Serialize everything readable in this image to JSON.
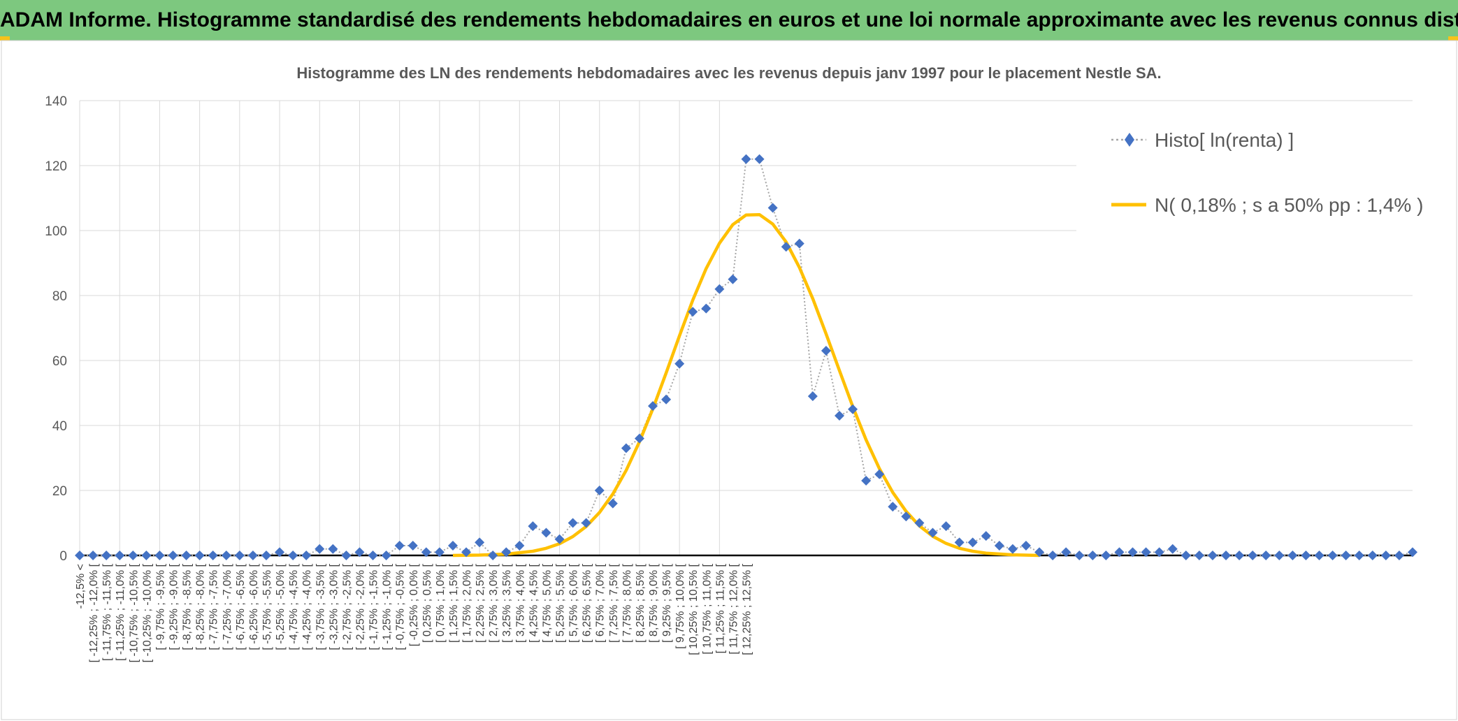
{
  "header": {
    "title": "ADAM Informe. Histogramme standardisé des rendements hebdomadaires en euros et une loi normale approximante avec les revenus connus distribués"
  },
  "colors": {
    "header_bg": "#7dc87f",
    "accent": "#f7c21a",
    "series_marker": "#4472c4",
    "normal_curve": "#ffc000",
    "connector": "#a6a6a6",
    "grid": "#d9d9d9"
  },
  "chart_data": {
    "type": "line",
    "title": "Histogramme des LN des rendements hebdomadaires avec les revenus depuis janv 1997 pour le placement Nestle SA.",
    "xlabel": "",
    "ylabel": "",
    "ylim": [
      0,
      140
    ],
    "yticks": [
      0,
      20,
      40,
      60,
      80,
      100,
      120,
      140
    ],
    "grid": true,
    "legend_position": "top-right",
    "categories": [
      "-12,5% <",
      "[ -12,25% ; -12,0% [",
      "[ -11,75% ; -11,5% [",
      "[ -11,25% ; -11,0% [",
      "[ -10,75% ; -10,5% [",
      "[ -10,25% ; -10,0% [",
      "[ -9,75% ; -9,5% [",
      "[ -9,25% ; -9,0% [",
      "[ -8,75% ; -8,5% [",
      "[ -8,25% ; -8,0% [",
      "[ -7,75% ; -7,5% [",
      "[ -7,25% ; -7,0% [",
      "[ -6,75% ; -6,5% [",
      "[ -6,25% ; -6,0% [",
      "[ -5,75% ; -5,5% [",
      "[ -5,25% ; -5,0% [",
      "[ -4,75% ; -4,5% [",
      "[ -4,25% ; -4,0% [",
      "[ -3,75% ; -3,5% [",
      "[ -3,25% ; -3,0% [",
      "[ -2,75% ; -2,5% [",
      "[ -2,25% ; -2,0% [",
      "[ -1,75% ; -1,5% [",
      "[ -1,25% ; -1,0% [",
      "[ -0,75% ; -0,5% [",
      "[ -0,25% ; 0,0% [",
      "[ 0,25% ; 0,5% [",
      "[ 0,75% ; 1,0% [",
      "[ 1,25% ; 1,5% [",
      "[ 1,75% ; 2,0% [",
      "[ 2,25% ; 2,5% [",
      "[ 2,75% ; 3,0% [",
      "[ 3,25% ; 3,5% [",
      "[ 3,75% ; 4,0% [",
      "[ 4,25% ; 4,5% [",
      "[ 4,75% ; 5,0% [",
      "[ 5,25% ; 5,5% [",
      "[ 5,75% ; 6,0% [",
      "[ 6,25% ; 6,5% [",
      "[ 6,75% ; 7,0% [",
      "[ 7,25% ; 7,5% [",
      "[ 7,75% ; 8,0% [",
      "[ 8,25% ; 8,5% [",
      "[ 8,75% ; 9,0% [",
      "[ 9,25% ; 9,5% [",
      "[ 9,75% ; 10,0% [",
      "[ 10,25% ; 10,5% [",
      "[ 10,75% ; 11,0% [",
      "[ 11,25% ; 11,5% [",
      "[ 11,75% ; 12,0% [",
      "[ 12,25% ; 12,5% ["
    ],
    "series": [
      {
        "name": "Histo[ ln(renta) ]",
        "style": "markers",
        "x": [
          -12.5,
          -12.25,
          -12.0,
          -11.75,
          -11.5,
          -11.25,
          -11.0,
          -10.75,
          -10.5,
          -10.25,
          -10.0,
          -9.75,
          -9.5,
          -9.25,
          -9.0,
          -8.75,
          -8.5,
          -8.25,
          -8.0,
          -7.75,
          -7.5,
          -7.25,
          -7.0,
          -6.75,
          -6.5,
          -6.25,
          -6.0,
          -5.75,
          -5.5,
          -5.25,
          -5.0,
          -4.75,
          -4.5,
          -4.25,
          -4.0,
          -3.75,
          -3.5,
          -3.25,
          -3.0,
          -2.75,
          -2.5,
          -2.25,
          -2.0,
          -1.75,
          -1.5,
          -1.25,
          -1.0,
          -0.75,
          -0.5,
          -0.25,
          0.0,
          0.25,
          0.5,
          0.75,
          1.0,
          1.25,
          1.5,
          1.75,
          2.0,
          2.25,
          2.5,
          2.75,
          3.0,
          3.25,
          3.5,
          3.75,
          4.0,
          4.25,
          4.5,
          4.75,
          5.0,
          5.25,
          5.5,
          5.75,
          6.0,
          6.25,
          6.5,
          6.75,
          7.0,
          7.25,
          7.5,
          7.75,
          8.0,
          8.25,
          8.5,
          8.75,
          9.0,
          9.25,
          9.5,
          9.75,
          10.0,
          10.25,
          10.5,
          10.75,
          11.0,
          11.25,
          11.5,
          11.75,
          12.0,
          12.25,
          12.5
        ],
        "values": [
          0,
          0,
          0,
          0,
          0,
          0,
          0,
          0,
          0,
          0,
          0,
          0,
          0,
          0,
          0,
          1,
          0,
          0,
          2,
          2,
          0,
          1,
          0,
          0,
          3,
          3,
          1,
          1,
          3,
          1,
          4,
          0,
          1,
          3,
          9,
          7,
          5,
          10,
          10,
          20,
          16,
          33,
          36,
          46,
          48,
          59,
          75,
          76,
          82,
          85,
          122,
          122,
          107,
          95,
          96,
          49,
          63,
          43,
          45,
          23,
          25,
          15,
          12,
          10,
          7,
          9,
          4,
          4,
          6,
          3,
          2,
          3,
          1,
          0,
          1,
          0,
          0,
          0,
          1,
          1,
          1,
          1,
          2,
          0,
          0,
          0,
          0,
          0,
          0,
          0,
          0,
          0,
          0,
          0,
          0,
          0,
          0,
          0,
          0,
          0,
          1
        ]
      },
      {
        "name": "N( 0,18% ; s a 50% pp : 1,4% )",
        "style": "line",
        "mean": 0.18,
        "peak": 105,
        "x": [
          -5.5,
          -5.0,
          -4.5,
          -4.0,
          -3.75,
          -3.5,
          -3.25,
          -3.0,
          -2.75,
          -2.5,
          -2.25,
          -2.0,
          -1.75,
          -1.5,
          -1.25,
          -1.0,
          -0.75,
          -0.5,
          -0.25,
          0.0,
          0.25,
          0.5,
          0.75,
          1.0,
          1.25,
          1.5,
          1.75,
          2.0,
          2.25,
          2.5,
          2.75,
          3.0,
          3.25,
          3.5,
          3.75,
          4.0,
          4.25,
          4.5,
          5.0,
          5.5
        ],
        "values": [
          0,
          0.1,
          0.4,
          1.3,
          2.2,
          3.6,
          5.8,
          8.9,
          13.2,
          18.9,
          26.2,
          35.0,
          45.1,
          56.2,
          67.6,
          78.6,
          88.3,
          96.1,
          101.8,
          104.8,
          104.9,
          102.0,
          96.5,
          88.6,
          79.0,
          68.2,
          56.9,
          45.8,
          35.6,
          26.7,
          19.4,
          13.6,
          9.1,
          5.9,
          3.7,
          2.2,
          1.3,
          0.7,
          0.2,
          0
        ]
      }
    ]
  }
}
